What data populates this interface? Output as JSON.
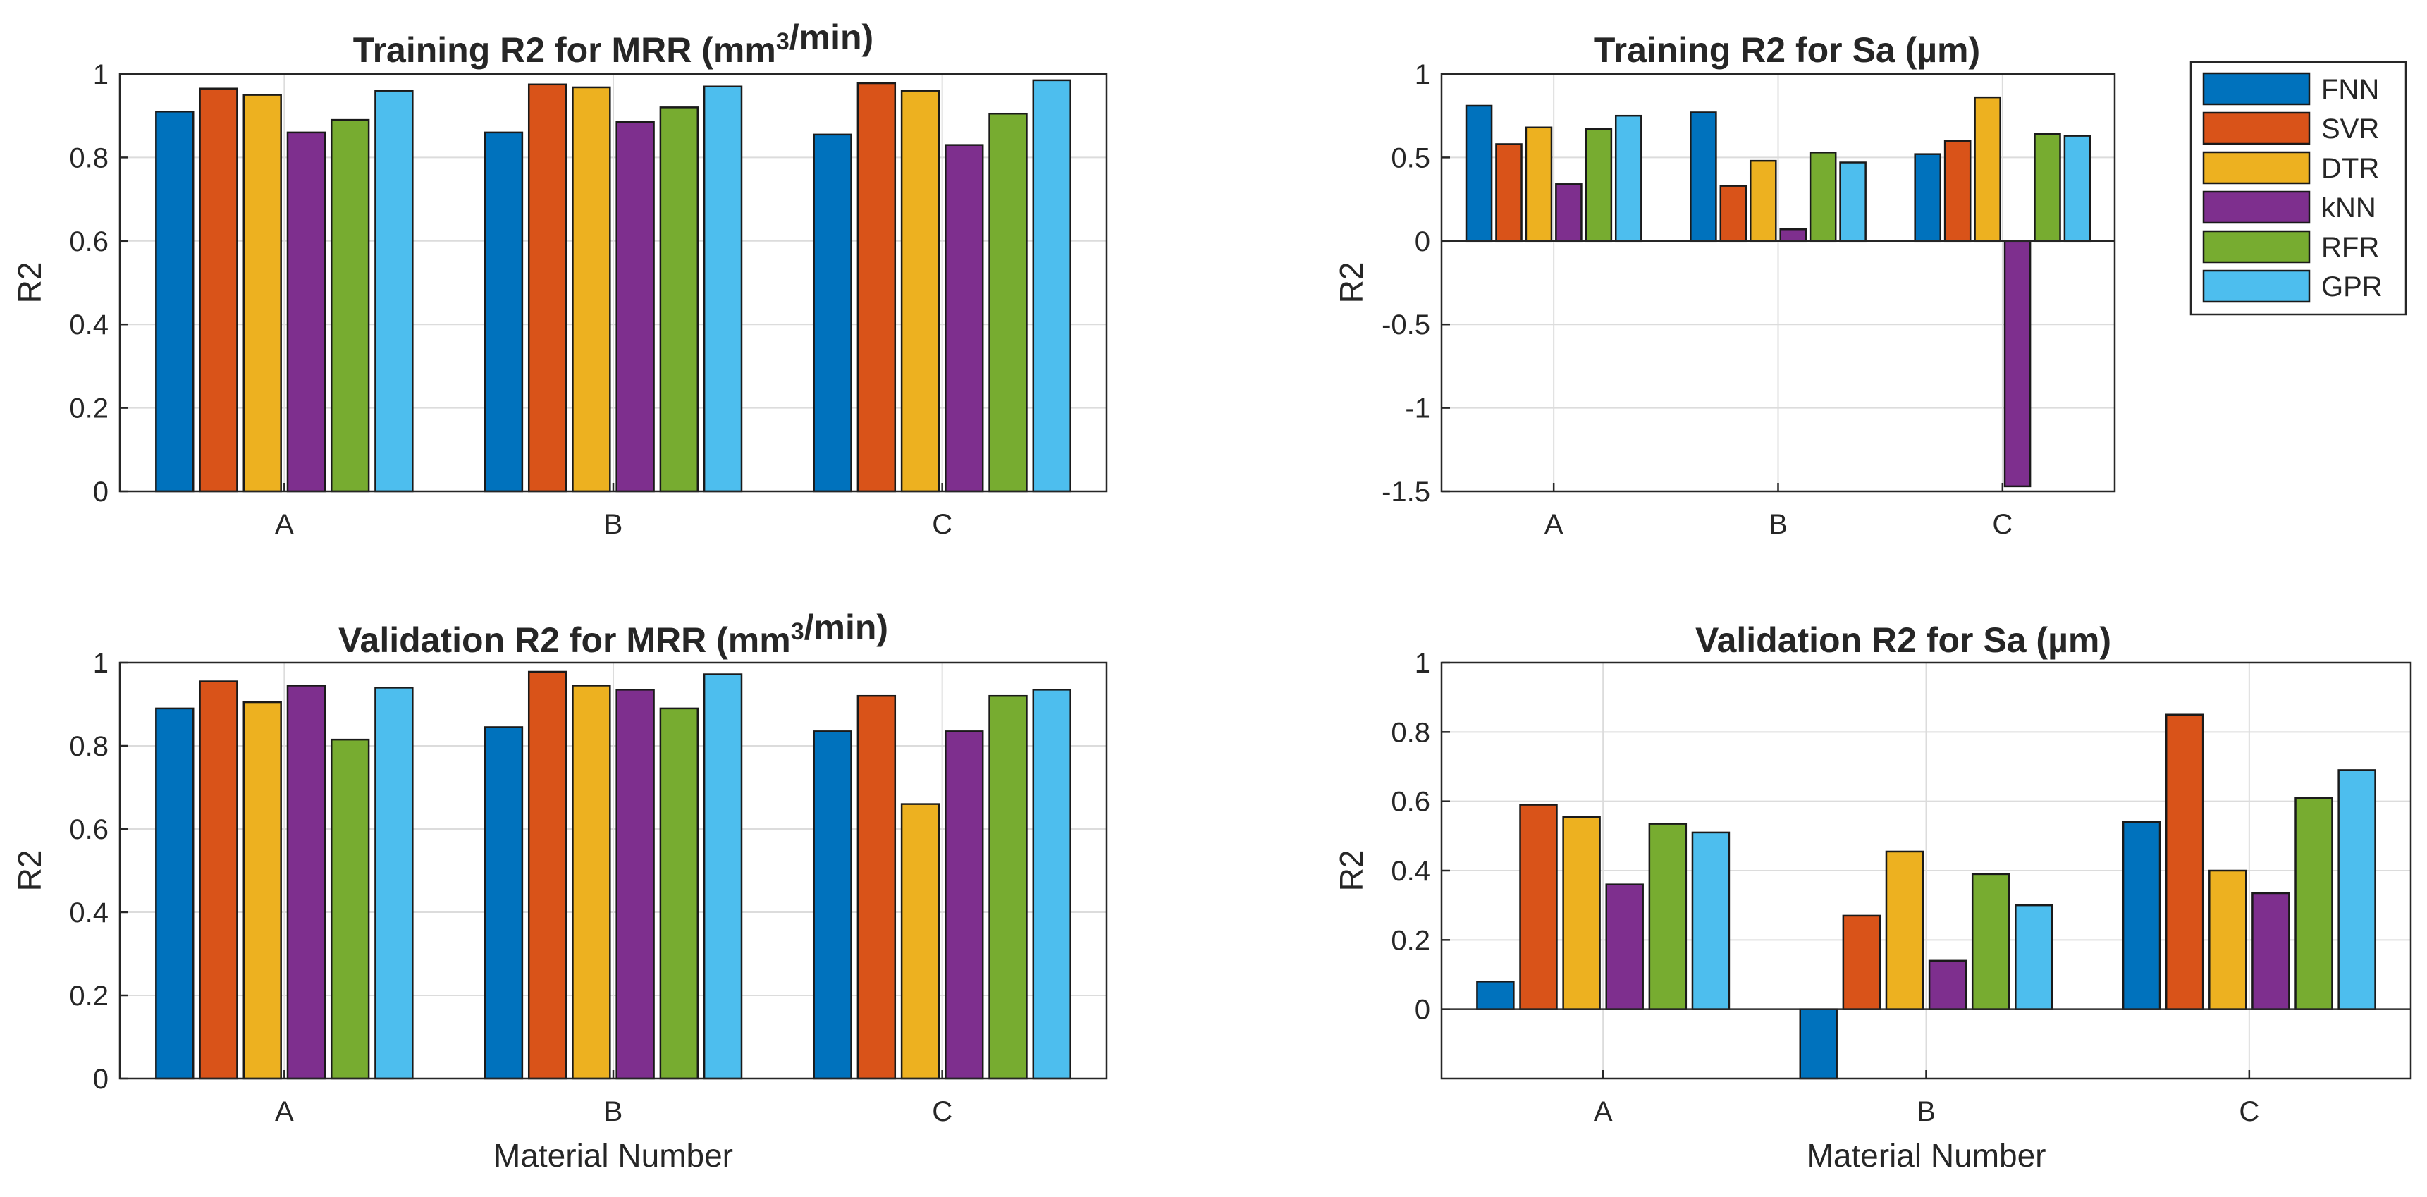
{
  "legend": {
    "items": [
      {
        "name": "FNN",
        "color": "#0072BD"
      },
      {
        "name": "SVR",
        "color": "#D95319"
      },
      {
        "name": "DTR",
        "color": "#EDB120"
      },
      {
        "name": "kNN",
        "color": "#7E2F8E"
      },
      {
        "name": "RFR",
        "color": "#77AC30"
      },
      {
        "name": "GPR",
        "color": "#4DBEEE"
      }
    ]
  },
  "chart_data": [
    {
      "type": "bar",
      "title": "Training R2 for MRR (mm³/min)",
      "ylabel": "R2",
      "xlabel": "",
      "categories": [
        "A",
        "B",
        "C"
      ],
      "ylim": [
        0,
        1
      ],
      "yticks": [
        0,
        0.2,
        0.4,
        0.6,
        0.8,
        1
      ],
      "yticklabels": [
        "0",
        "0.2",
        "0.4",
        "0.6",
        "0.8",
        "1"
      ],
      "series": [
        {
          "name": "FNN",
          "values": [
            0.91,
            0.86,
            0.855
          ]
        },
        {
          "name": "SVR",
          "values": [
            0.965,
            0.975,
            0.978
          ]
        },
        {
          "name": "DTR",
          "values": [
            0.95,
            0.968,
            0.96
          ]
        },
        {
          "name": "kNN",
          "values": [
            0.86,
            0.885,
            0.83
          ]
        },
        {
          "name": "RFR",
          "values": [
            0.89,
            0.92,
            0.905
          ]
        },
        {
          "name": "GPR",
          "values": [
            0.96,
            0.97,
            0.985
          ]
        }
      ]
    },
    {
      "type": "bar",
      "title": "Training R2 for Sa (µm)",
      "ylabel": "R2",
      "xlabel": "",
      "categories": [
        "A",
        "B",
        "C"
      ],
      "ylim": [
        -1.5,
        1
      ],
      "yticks": [
        -1.5,
        -1,
        -0.5,
        0,
        0.5,
        1
      ],
      "yticklabels": [
        "-1.5",
        "-1",
        "-0.5",
        "0",
        "0.5",
        "1"
      ],
      "series": [
        {
          "name": "FNN",
          "values": [
            0.81,
            0.77,
            0.52
          ]
        },
        {
          "name": "SVR",
          "values": [
            0.58,
            0.33,
            0.6
          ]
        },
        {
          "name": "DTR",
          "values": [
            0.68,
            0.48,
            0.86
          ]
        },
        {
          "name": "kNN",
          "values": [
            0.34,
            0.07,
            -1.47
          ]
        },
        {
          "name": "RFR",
          "values": [
            0.67,
            0.53,
            0.64
          ]
        },
        {
          "name": "GPR",
          "values": [
            0.75,
            0.47,
            0.63
          ]
        }
      ]
    },
    {
      "type": "bar",
      "title": "Validation R2 for MRR (mm³/min)",
      "ylabel": "R2",
      "xlabel": "Material Number",
      "categories": [
        "A",
        "B",
        "C"
      ],
      "ylim": [
        0,
        1
      ],
      "yticks": [
        0,
        0.2,
        0.4,
        0.6,
        0.8,
        1
      ],
      "yticklabels": [
        "0",
        "0.2",
        "0.4",
        "0.6",
        "0.8",
        "1"
      ],
      "series": [
        {
          "name": "FNN",
          "values": [
            0.89,
            0.845,
            0.835
          ]
        },
        {
          "name": "SVR",
          "values": [
            0.955,
            0.978,
            0.92
          ]
        },
        {
          "name": "DTR",
          "values": [
            0.905,
            0.945,
            0.66
          ]
        },
        {
          "name": "kNN",
          "values": [
            0.945,
            0.935,
            0.835
          ]
        },
        {
          "name": "RFR",
          "values": [
            0.815,
            0.89,
            0.92
          ]
        },
        {
          "name": "GPR",
          "values": [
            0.94,
            0.972,
            0.935
          ]
        }
      ]
    },
    {
      "type": "bar",
      "title": "Validation R2 for Sa (µm)",
      "ylabel": "R2",
      "xlabel": "Material Number",
      "categories": [
        "A",
        "B",
        "C"
      ],
      "ylim": [
        -0.2,
        1
      ],
      "yticks": [
        0,
        0.2,
        0.4,
        0.6,
        0.8,
        1
      ],
      "yticklabels": [
        "0",
        "0.2",
        "0.4",
        "0.6",
        "0.8",
        "1"
      ],
      "series": [
        {
          "name": "FNN",
          "values": [
            0.08,
            -0.22,
            0.54
          ]
        },
        {
          "name": "SVR",
          "values": [
            0.59,
            0.27,
            0.85
          ]
        },
        {
          "name": "DTR",
          "values": [
            0.555,
            0.455,
            0.4
          ]
        },
        {
          "name": "kNN",
          "values": [
            0.36,
            0.14,
            0.335
          ]
        },
        {
          "name": "RFR",
          "values": [
            0.535,
            0.39,
            0.61
          ]
        },
        {
          "name": "GPR",
          "values": [
            0.51,
            0.3,
            0.69
          ]
        }
      ]
    }
  ]
}
